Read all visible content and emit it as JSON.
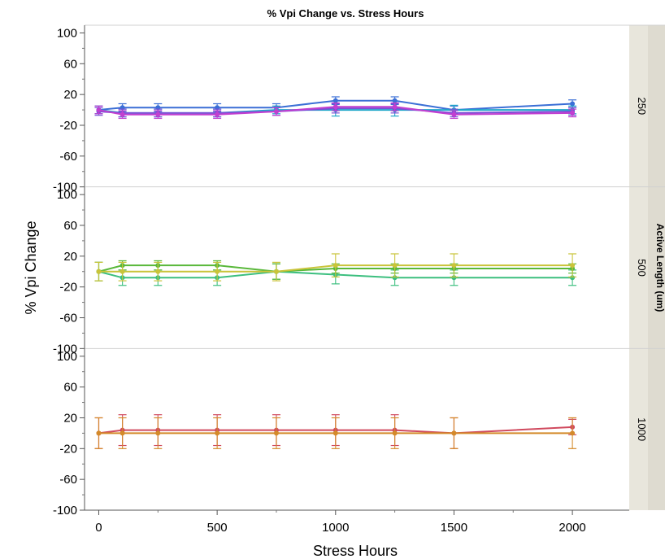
{
  "chart_data": {
    "type": "line",
    "title": "% Vpi Change vs. Stress Hours",
    "xlabel": "Stress Hours",
    "ylabel": "% Vpi Change",
    "facet_title": "Active Length (um)",
    "xlim": [
      -60,
      2240
    ],
    "ylim": [
      -100,
      110
    ],
    "x_ticks": [
      0,
      500,
      1000,
      1500,
      2000
    ],
    "y_ticks": [
      -100,
      -60,
      -20,
      20,
      60,
      100
    ],
    "grid": false,
    "panels": [
      {
        "facet": "250",
        "series": [
          {
            "color": "#3b6fd6",
            "x": [
              0,
              100,
              250,
              500,
              750,
              1000,
              1250,
              1500,
              2000
            ],
            "y": [
              0,
              3,
              3,
              3,
              3,
              12,
              12,
              0,
              8
            ],
            "err": [
              5,
              5,
              5,
              5,
              5,
              5,
              5,
              5,
              5
            ]
          },
          {
            "color": "#1ea6c9",
            "x": [
              0,
              100,
              250,
              500,
              750,
              1000,
              1250,
              1500,
              2000
            ],
            "y": [
              0,
              -4,
              -4,
              -4,
              0,
              0,
              0,
              0,
              0
            ],
            "err": [
              5,
              5,
              5,
              5,
              5,
              8,
              8,
              6,
              5
            ]
          },
          {
            "color": "#7a4fd6",
            "x": [
              0,
              100,
              250,
              500,
              750,
              1000,
              1250,
              1500,
              2000
            ],
            "y": [
              -2,
              -4,
              -4,
              -4,
              -2,
              2,
              2,
              -4,
              -2
            ],
            "err": [
              5,
              5,
              5,
              5,
              5,
              6,
              6,
              5,
              5
            ]
          },
          {
            "color": "#c13fd0",
            "x": [
              0,
              100,
              250,
              500,
              750,
              1000,
              1250,
              1500,
              2000
            ],
            "y": [
              0,
              -6,
              -6,
              -6,
              -2,
              4,
              4,
              -6,
              -4
            ],
            "err": [
              5,
              5,
              5,
              5,
              5,
              5,
              5,
              5,
              5
            ]
          }
        ]
      },
      {
        "facet": "500",
        "series": [
          {
            "color": "#3cbf7f",
            "x": [
              0,
              100,
              250,
              500,
              750,
              1000,
              1250,
              1500,
              2000
            ],
            "y": [
              0,
              -8,
              -8,
              -8,
              0,
              -4,
              -8,
              -8,
              -8
            ],
            "err": [
              12,
              10,
              10,
              10,
              10,
              12,
              10,
              10,
              10
            ]
          },
          {
            "color": "#59b83a",
            "x": [
              0,
              100,
              250,
              500,
              750,
              1000,
              1250,
              1500,
              2000
            ],
            "y": [
              0,
              8,
              8,
              8,
              0,
              4,
              4,
              4,
              4
            ],
            "err": [
              12,
              6,
              6,
              6,
              10,
              6,
              6,
              6,
              6
            ]
          },
          {
            "color": "#c9c43a",
            "x": [
              0,
              100,
              250,
              500,
              750,
              1000,
              1250,
              1500,
              2000
            ],
            "y": [
              0,
              0,
              0,
              0,
              0,
              8,
              8,
              8,
              8
            ],
            "err": [
              12,
              12,
              12,
              12,
              12,
              15,
              15,
              15,
              15
            ]
          }
        ]
      },
      {
        "facet": "1000",
        "series": [
          {
            "color": "#d04a5e",
            "x": [
              0,
              100,
              250,
              500,
              750,
              1000,
              1250,
              1500,
              2000
            ],
            "y": [
              0,
              4,
              4,
              4,
              4,
              4,
              4,
              0,
              8
            ],
            "err": [
              20,
              20,
              20,
              20,
              20,
              20,
              20,
              20,
              10
            ]
          },
          {
            "color": "#d48a2a",
            "x": [
              0,
              100,
              250,
              500,
              750,
              1000,
              1250,
              1500,
              2000
            ],
            "y": [
              0,
              0,
              0,
              0,
              0,
              0,
              0,
              0,
              0
            ],
            "err": [
              20,
              20,
              20,
              20,
              20,
              20,
              20,
              20,
              20
            ]
          }
        ]
      }
    ]
  }
}
